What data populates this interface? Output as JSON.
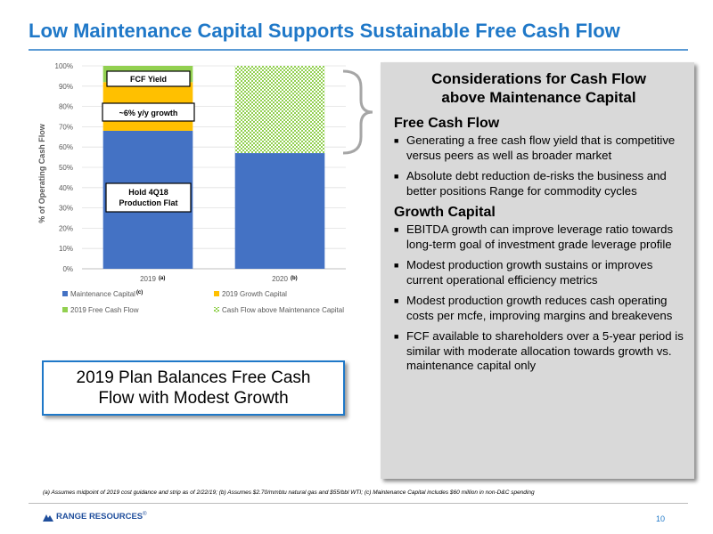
{
  "slide": {
    "title": "Low Maintenance Capital Supports Sustainable Free Cash Flow",
    "page_number": "10",
    "logo_text": "RANGE RESOURCES",
    "logo_mark": "®",
    "footnote": "(a) Assumes midpoint of 2019 cost guidance and strip as of 2/22/19; (b) Assumes $2.70/mmbtu natural gas and $55/bbl WTI; (c) Maintenance Capital includes $60 million in non-D&C spending"
  },
  "chart_data": {
    "type": "bar",
    "stacked": true,
    "ylabel": "% of Operating Cash Flow",
    "ylim": [
      0,
      100
    ],
    "yticks": [
      "0%",
      "10%",
      "20%",
      "30%",
      "40%",
      "50%",
      "60%",
      "70%",
      "80%",
      "90%",
      "100%"
    ],
    "categories": [
      "2019",
      "2020"
    ],
    "category_notes": [
      "(a)",
      "(b)"
    ],
    "series": [
      {
        "name": "Maintenance Capital",
        "name_note": "(c)",
        "color": "#4472c4",
        "values": [
          68,
          57
        ]
      },
      {
        "name": "2019 Growth Capital",
        "color": "#ffc000",
        "values": [
          24,
          0
        ]
      },
      {
        "name": "2019 Free Cash Flow",
        "color": "#92d050",
        "values": [
          8,
          0
        ]
      },
      {
        "name": "Cash Flow above Maintenance Capital",
        "color": "#92d050",
        "pattern": "checker",
        "values": [
          0,
          43
        ]
      }
    ],
    "legend_position": "bottom",
    "annotations": [
      "FCF Yield",
      "~6% y/y growth",
      "Hold 4Q18",
      "Production Flat"
    ]
  },
  "plan_box": {
    "line1": "2019 Plan Balances Free Cash",
    "line2": "Flow with Modest Growth"
  },
  "panel": {
    "title_line1": "Considerations for Cash Flow",
    "title_line2": "above Maintenance Capital",
    "sections": [
      {
        "heading": "Free Cash Flow",
        "bullets": [
          "Generating a free cash flow yield that is competitive versus peers as well as broader market",
          "Absolute debt reduction de-risks the business and better positions Range for commodity cycles"
        ]
      },
      {
        "heading": "Growth Capital",
        "bullets": [
          "EBITDA growth can improve leverage ratio towards long-term goal of investment grade leverage profile",
          "Modest production growth sustains or improves current operational efficiency metrics",
          "Modest production growth reduces cash operating costs per mcfe, improving margins and breakevens",
          "FCF available to shareholders over a 5-year period is similar with moderate allocation towards growth vs. maintenance capital only"
        ]
      }
    ]
  }
}
